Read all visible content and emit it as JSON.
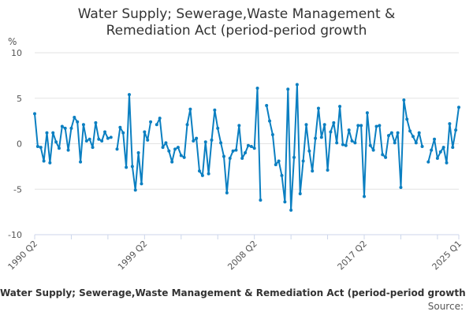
{
  "chart_data": {
    "type": "line",
    "title_lines": [
      "Water Supply; Sewerage,Waste Management &",
      "Remediation Act (period-period growth"
    ],
    "ylabel": "%",
    "ylim": [
      -10,
      10
    ],
    "yticks": [
      10,
      5,
      0,
      -5,
      -10
    ],
    "grid": true,
    "start": "1990 Q2",
    "end": "2025 Q1",
    "xtick_labels": [
      {
        "label": "1990 Q2",
        "index": 0
      },
      {
        "label": "1999 Q2",
        "index": 36
      },
      {
        "label": "2008 Q2",
        "index": 72
      },
      {
        "label": "2017 Q2",
        "index": 108
      },
      {
        "label": "2025 Q1",
        "index": 139
      }
    ],
    "color": "#0b7fc1",
    "values": [
      3.3,
      -0.3,
      -0.4,
      -1.9,
      1.2,
      -2.1,
      1.2,
      0.2,
      -0.5,
      1.9,
      1.7,
      -0.7,
      1.7,
      2.9,
      2.4,
      -2.0,
      2.1,
      0.3,
      0.5,
      -0.4,
      2.3,
      0.5,
      0.3,
      1.3,
      0.6,
      0.7,
      null,
      -0.6,
      1.8,
      1.2,
      -2.6,
      5.4,
      -2.5,
      -5.1,
      -1.0,
      -4.4,
      1.3,
      0.4,
      2.4,
      null,
      2.1,
      2.8,
      -0.4,
      0.1,
      -0.8,
      -2.0,
      -0.6,
      -0.4,
      -1.3,
      -1.5,
      2.1,
      3.8,
      0.3,
      0.6,
      -3.0,
      -3.5,
      0.2,
      -3.3,
      0.4,
      3.7,
      1.7,
      0.1,
      -1.4,
      -5.4,
      -1.6,
      -0.8,
      -0.7,
      2.0,
      -1.6,
      -1.0,
      -0.2,
      -0.3,
      -0.5,
      6.1,
      -6.2,
      null,
      4.2,
      2.5,
      1.0,
      -2.3,
      -1.9,
      -3.5,
      -6.4,
      6.0,
      -7.3,
      -1.5,
      6.5,
      -5.5,
      -1.9,
      2.1,
      -0.8,
      -3.0,
      0.6,
      3.9,
      0.7,
      2.1,
      -2.9,
      1.3,
      2.3,
      0.1,
      4.1,
      -0.1,
      -0.2,
      1.5,
      0.3,
      0.1,
      2.0,
      2.0,
      -5.8,
      3.4,
      -0.2,
      -0.7,
      1.9,
      2.0,
      -1.2,
      -1.5,
      0.9,
      1.2,
      0.1,
      1.2,
      -4.8,
      4.8,
      2.7,
      1.4,
      0.8,
      0.1,
      1.2,
      -0.3,
      null,
      -2.0,
      -0.7,
      0.5,
      -1.6,
      -0.9,
      -0.4,
      -2.1,
      2.2,
      -0.4,
      1.5,
      4.0
    ]
  },
  "footer": {
    "series_title": "Water Supply; Sewerage,Waste Management & Remediation Act (period-period growth",
    "source_label": "Source:"
  }
}
